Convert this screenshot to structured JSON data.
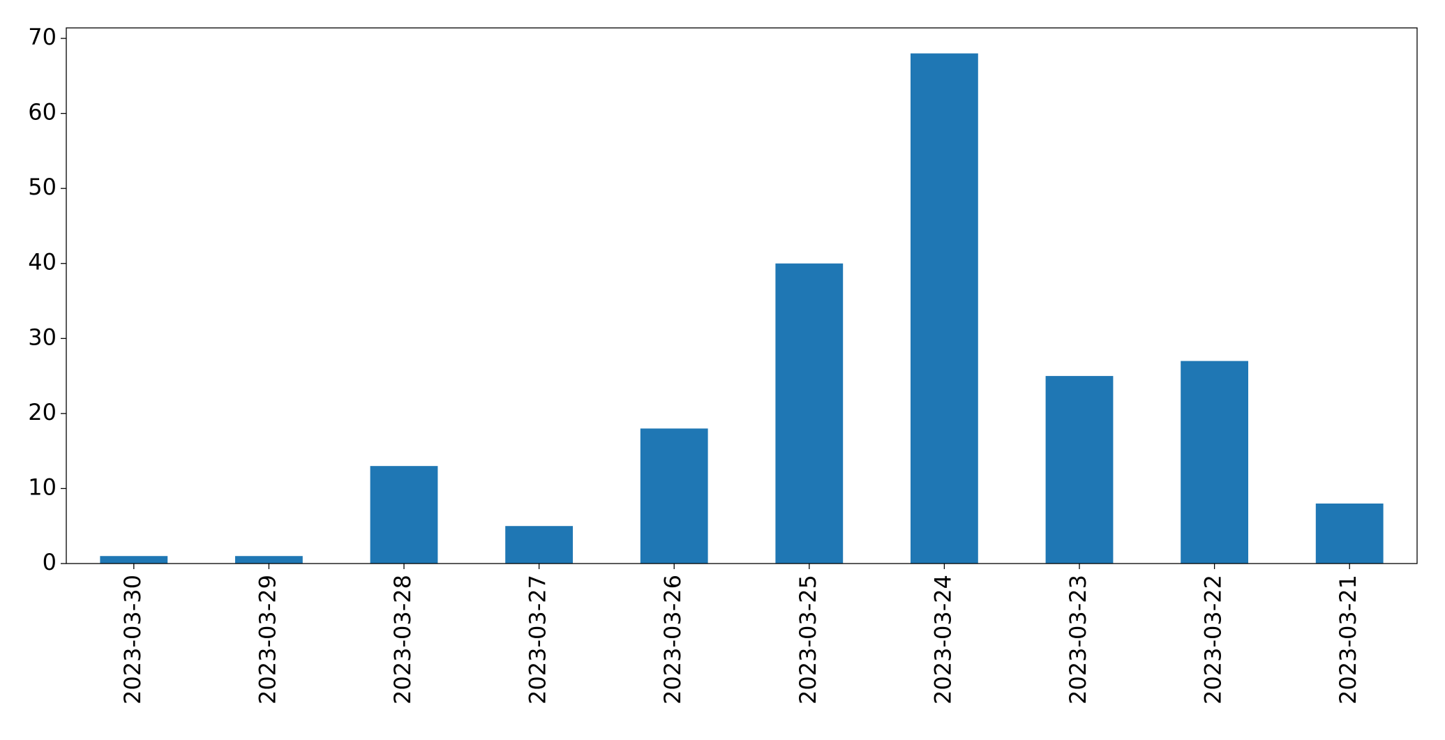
{
  "chart_data": {
    "type": "bar",
    "categories": [
      "2023-03-30",
      "2023-03-29",
      "2023-03-28",
      "2023-03-27",
      "2023-03-26",
      "2023-03-25",
      "2023-03-24",
      "2023-03-23",
      "2023-03-22",
      "2023-03-21"
    ],
    "values": [
      1,
      1,
      13,
      5,
      18,
      40,
      68,
      25,
      27,
      8
    ],
    "color": "#1f77b4",
    "ylim": [
      0,
      71.4
    ],
    "yticks": [
      0,
      10,
      20,
      30,
      40,
      50,
      60,
      70
    ],
    "grid": false
  }
}
